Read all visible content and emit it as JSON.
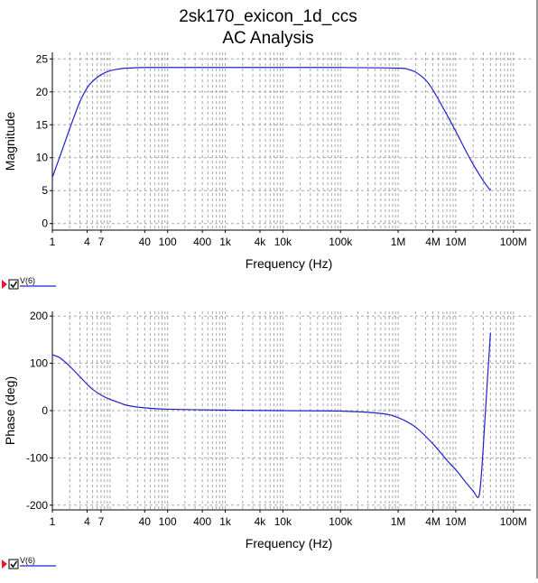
{
  "header": {
    "title": "2sk170_exicon_1d_ccs",
    "subtitle": "AC Analysis"
  },
  "chart_data": [
    {
      "type": "line",
      "xlabel": "Frequency (Hz)",
      "ylabel": "Magnitude",
      "xscale": "log",
      "xlim": [
        1,
        200000000
      ],
      "ylim": [
        -1,
        26
      ],
      "xticks": [
        {
          "value": 1,
          "label": "1"
        },
        {
          "value": 4,
          "label": "4"
        },
        {
          "value": 7,
          "label": "7"
        },
        {
          "value": 40,
          "label": "40"
        },
        {
          "value": 100,
          "label": "100"
        },
        {
          "value": 400,
          "label": "400"
        },
        {
          "value": 1000,
          "label": "1k"
        },
        {
          "value": 4000,
          "label": "4k"
        },
        {
          "value": 10000,
          "label": "10k"
        },
        {
          "value": 100000,
          "label": "100k"
        },
        {
          "value": 1000000,
          "label": "1M"
        },
        {
          "value": 4000000,
          "label": "4M"
        },
        {
          "value": 10000000,
          "label": "10M"
        },
        {
          "value": 100000000,
          "label": "100M"
        }
      ],
      "yticks": [
        {
          "value": 0,
          "label": "0"
        },
        {
          "value": 5,
          "label": "5"
        },
        {
          "value": 10,
          "label": "10"
        },
        {
          "value": 15,
          "label": "15"
        },
        {
          "value": 20,
          "label": "20"
        },
        {
          "value": 25,
          "label": "25"
        }
      ],
      "grid": true,
      "legend": {
        "placement": "bottom-left",
        "checked": true
      },
      "series": [
        {
          "name": "V(6)",
          "color": "#2020d0",
          "x": [
            1,
            1.5,
            2,
            3,
            4,
            5,
            7,
            10,
            15,
            20,
            40,
            100,
            1000,
            10000,
            100000,
            1000000,
            1500000,
            2000000,
            3000000,
            4000000,
            6000000,
            10000000,
            15000000,
            20000000,
            30000000,
            40000000
          ],
          "y": [
            7.0,
            11.3,
            14.4,
            18.5,
            20.6,
            21.6,
            22.6,
            23.2,
            23.5,
            23.6,
            23.7,
            23.7,
            23.7,
            23.7,
            23.7,
            23.6,
            23.4,
            23.0,
            21.8,
            20.3,
            17.6,
            14.0,
            11.0,
            9.0,
            6.5,
            5.0
          ]
        }
      ]
    },
    {
      "type": "line",
      "xlabel": "Frequency (Hz)",
      "ylabel": "Phase (deg)",
      "xscale": "log",
      "xlim": [
        1,
        200000000
      ],
      "ylim": [
        -210,
        210
      ],
      "xticks": [
        {
          "value": 1,
          "label": "1"
        },
        {
          "value": 4,
          "label": "4"
        },
        {
          "value": 7,
          "label": "7"
        },
        {
          "value": 40,
          "label": "40"
        },
        {
          "value": 100,
          "label": "100"
        },
        {
          "value": 400,
          "label": "400"
        },
        {
          "value": 1000,
          "label": "1k"
        },
        {
          "value": 4000,
          "label": "4k"
        },
        {
          "value": 10000,
          "label": "10k"
        },
        {
          "value": 100000,
          "label": "100k"
        },
        {
          "value": 1000000,
          "label": "1M"
        },
        {
          "value": 4000000,
          "label": "4M"
        },
        {
          "value": 10000000,
          "label": "10M"
        },
        {
          "value": 100000000,
          "label": "100M"
        }
      ],
      "yticks": [
        {
          "value": -200,
          "label": "-200"
        },
        {
          "value": -100,
          "label": "-100"
        },
        {
          "value": 0,
          "label": "0"
        },
        {
          "value": 100,
          "label": "100"
        },
        {
          "value": 200,
          "label": "200"
        }
      ],
      "grid": true,
      "legend": {
        "placement": "bottom-left",
        "checked": true
      },
      "series": [
        {
          "name": "V(6)",
          "color": "#2020d0",
          "x": [
            1,
            1.3,
            1.7,
            2,
            3,
            4,
            5,
            7,
            10,
            15,
            20,
            40,
            100,
            1000,
            10000,
            100000,
            500000,
            1000000,
            2000000,
            4000000,
            7000000,
            10000000,
            15000000,
            20000000,
            25000000,
            28000000,
            32000000,
            36000000,
            40000000
          ],
          "y": [
            118,
            113,
            102,
            94,
            72,
            56,
            45,
            33,
            24,
            16,
            11,
            6,
            3,
            1,
            0,
            -1,
            -6,
            -15,
            -35,
            -70,
            -105,
            -125,
            -152,
            -170,
            -182,
            -130,
            -20,
            80,
            165
          ]
        }
      ]
    }
  ]
}
